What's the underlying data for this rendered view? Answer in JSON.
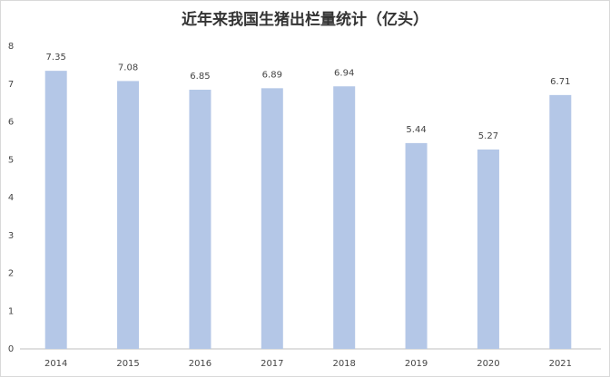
{
  "chart_data": {
    "type": "bar",
    "title": "近年来我国生猪出栏量统计（亿头）",
    "categories": [
      "2014",
      "2015",
      "2016",
      "2017",
      "2018",
      "2019",
      "2020",
      "2021"
    ],
    "values": [
      7.35,
      7.08,
      6.85,
      6.89,
      6.94,
      5.44,
      5.27,
      6.71
    ],
    "color": "#b4c7e7",
    "ylim": [
      0,
      8
    ],
    "yticks": [
      0,
      1,
      2,
      3,
      4,
      5,
      6,
      7,
      8
    ],
    "grid": false
  }
}
